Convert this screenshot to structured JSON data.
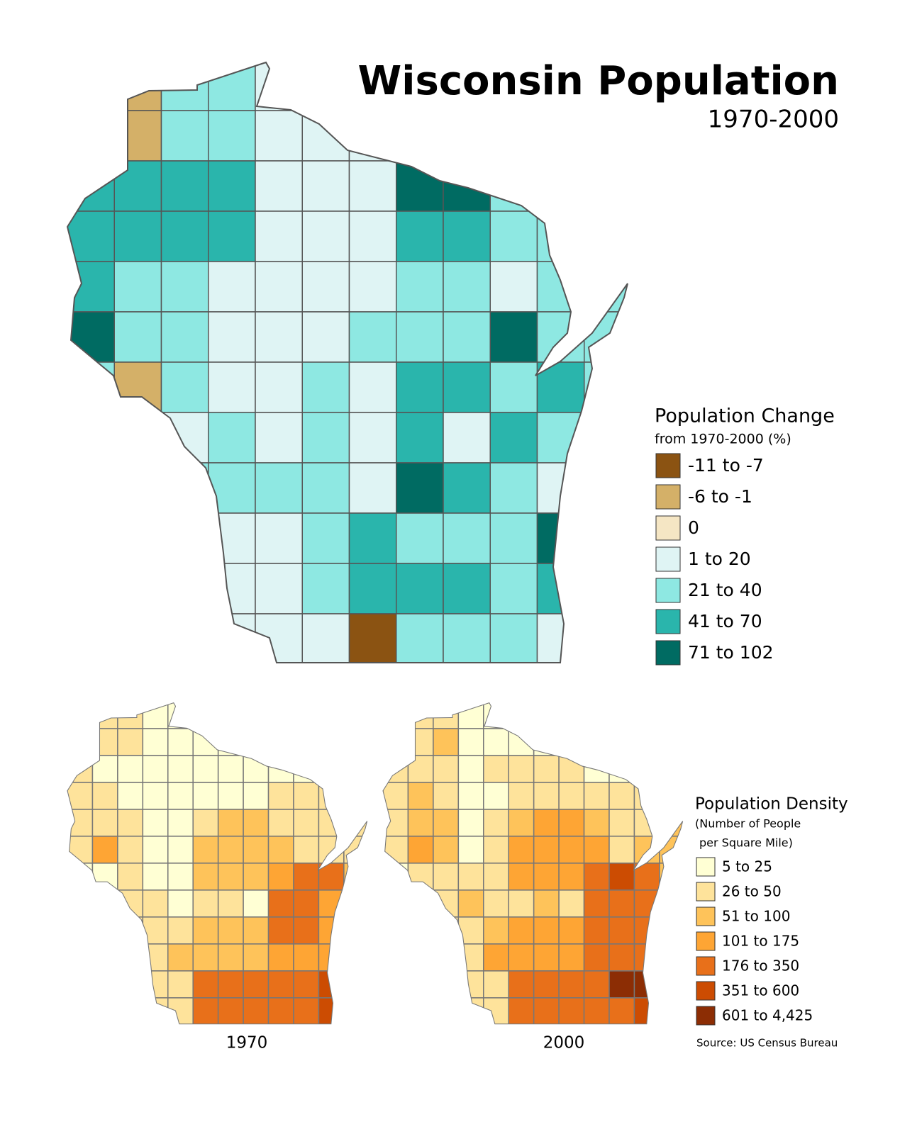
{
  "title": "Wisconsin Population",
  "subtitle": "1970-2000",
  "change_legend": {
    "title": "Population Change",
    "subtitle": "from 1970-2000 (%)",
    "items": [
      {
        "label": "-11 to -7",
        "color": "#8b5312"
      },
      {
        "label": "-6 to -1",
        "color": "#d4b068"
      },
      {
        "label": "0",
        "color": "#f5e6c4"
      },
      {
        "label": "1 to 20",
        "color": "#dff4f4"
      },
      {
        "label": "21 to 40",
        "color": "#8ee8e2"
      },
      {
        "label": "41 to 70",
        "color": "#2ab5ac"
      },
      {
        "label": "71 to 102",
        "color": "#006b62"
      }
    ]
  },
  "density_legend": {
    "title": "Population Density",
    "subtitle": [
      "(Number of People",
      "per Square Mile)"
    ],
    "items": [
      {
        "label": "5 to 25",
        "color": "#ffffd4"
      },
      {
        "label": "26 to 50",
        "color": "#fee39b"
      },
      {
        "label": "51 to 100",
        "color": "#fec35a"
      },
      {
        "label": "101 to 175",
        "color": "#fea534"
      },
      {
        "label": "176 to 350",
        "color": "#e8701a"
      },
      {
        "label": "351 to 600",
        "color": "#cc4c02"
      },
      {
        "label": "601 to 4,425",
        "color": "#8c2d04"
      }
    ]
  },
  "maps": [
    {
      "label": "1970"
    },
    {
      "label": "2000"
    }
  ],
  "source": "Source: US Census Bureau"
}
